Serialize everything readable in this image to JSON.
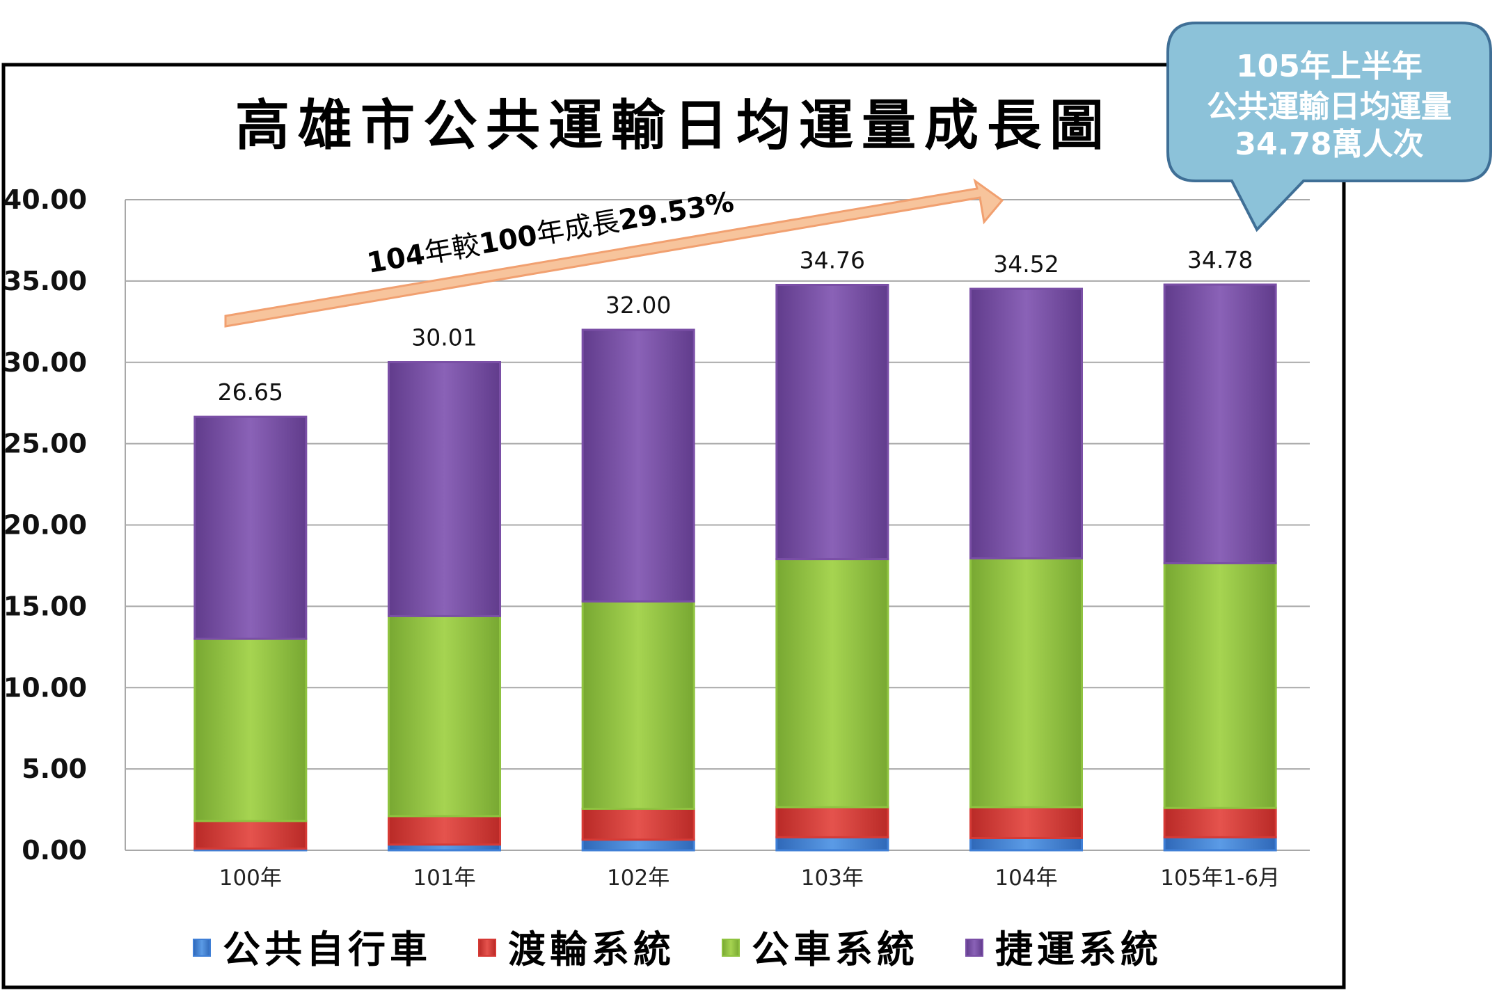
{
  "chart_data": {
    "type": "bar",
    "stacked": true,
    "title": "高雄市公共運輸日均運量成長圖",
    "categories": [
      "100年",
      "101年",
      "102年",
      "103年",
      "104年",
      "105年1-6月"
    ],
    "series": [
      {
        "name": "公共自行車",
        "color": "#3f7fd6",
        "values": [
          0.1,
          0.35,
          0.65,
          0.8,
          0.75,
          0.8
        ]
      },
      {
        "name": "渡輪系統",
        "color": "#d63a35",
        "values": [
          1.7,
          1.75,
          1.9,
          1.85,
          1.9,
          1.8
        ]
      },
      {
        "name": "公車系統",
        "color": "#8fc340",
        "values": [
          11.2,
          12.3,
          12.75,
          15.25,
          15.3,
          15.05
        ]
      },
      {
        "name": "捷運系統",
        "color": "#7a4fa6",
        "values": [
          13.65,
          15.61,
          16.7,
          16.86,
          16.57,
          17.13
        ]
      }
    ],
    "totals": [
      "26.65",
      "30.01",
      "32.00",
      "34.76",
      "34.52",
      "34.78"
    ],
    "yticks": [
      "0.00",
      "5.00",
      "10.00",
      "15.00",
      "20.00",
      "25.00",
      "30.00",
      "35.00",
      "40.00"
    ],
    "ylim": [
      0,
      40
    ],
    "grid": true,
    "legend_position": "bottom",
    "annotations": {
      "arrow_prefix": "104",
      "arrow_mid1": "年較",
      "arrow_num": "100",
      "arrow_mid2": "年成長",
      "arrow_pct": "29.53%",
      "callout_line1": "105年上半年",
      "callout_line2": "公共運輸日均運量",
      "callout_line3": "34.78萬人次"
    }
  }
}
